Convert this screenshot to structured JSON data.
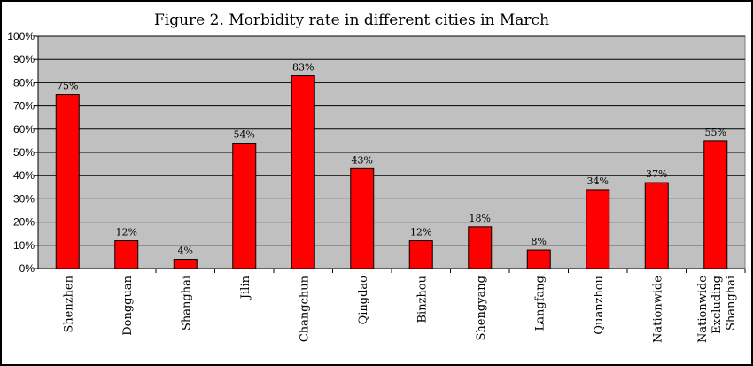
{
  "chart_data": {
    "type": "bar",
    "title": "Figure 2. Morbidity rate in different cities in March",
    "xlabel": "",
    "ylabel": "",
    "categories": [
      [
        "Shenzhen"
      ],
      [
        "Dongguan"
      ],
      [
        "Shanghai"
      ],
      [
        "Jilin"
      ],
      [
        "Changchun"
      ],
      [
        "Qingdao"
      ],
      [
        "Binzhou"
      ],
      [
        "Shengyang"
      ],
      [
        "Langfang"
      ],
      [
        "Quanzhou"
      ],
      [
        "Nationwide"
      ],
      [
        "Nationwide",
        "Excluding",
        "Shanghai"
      ]
    ],
    "values": [
      75,
      12,
      4,
      54,
      83,
      43,
      12,
      18,
      8,
      34,
      37,
      55
    ],
    "data_labels": [
      "75%",
      "12%",
      "4%",
      "54%",
      "83%",
      "43%",
      "12%",
      "18%",
      "8%",
      "34%",
      "37%",
      "55%"
    ],
    "ylim": [
      0,
      100
    ],
    "yticks": [
      0,
      10,
      20,
      30,
      40,
      50,
      60,
      70,
      80,
      90,
      100
    ],
    "ytick_labels": [
      "0%",
      "10%",
      "20%",
      "30%",
      "40%",
      "50%",
      "60%",
      "70%",
      "80%",
      "90%",
      "100%"
    ],
    "grid": true,
    "legend": "none",
    "colors": {
      "bar": "#ff0000",
      "bar_outline": "#000000",
      "plot_background": "#c0c0c0",
      "gridline": "#000000"
    }
  }
}
